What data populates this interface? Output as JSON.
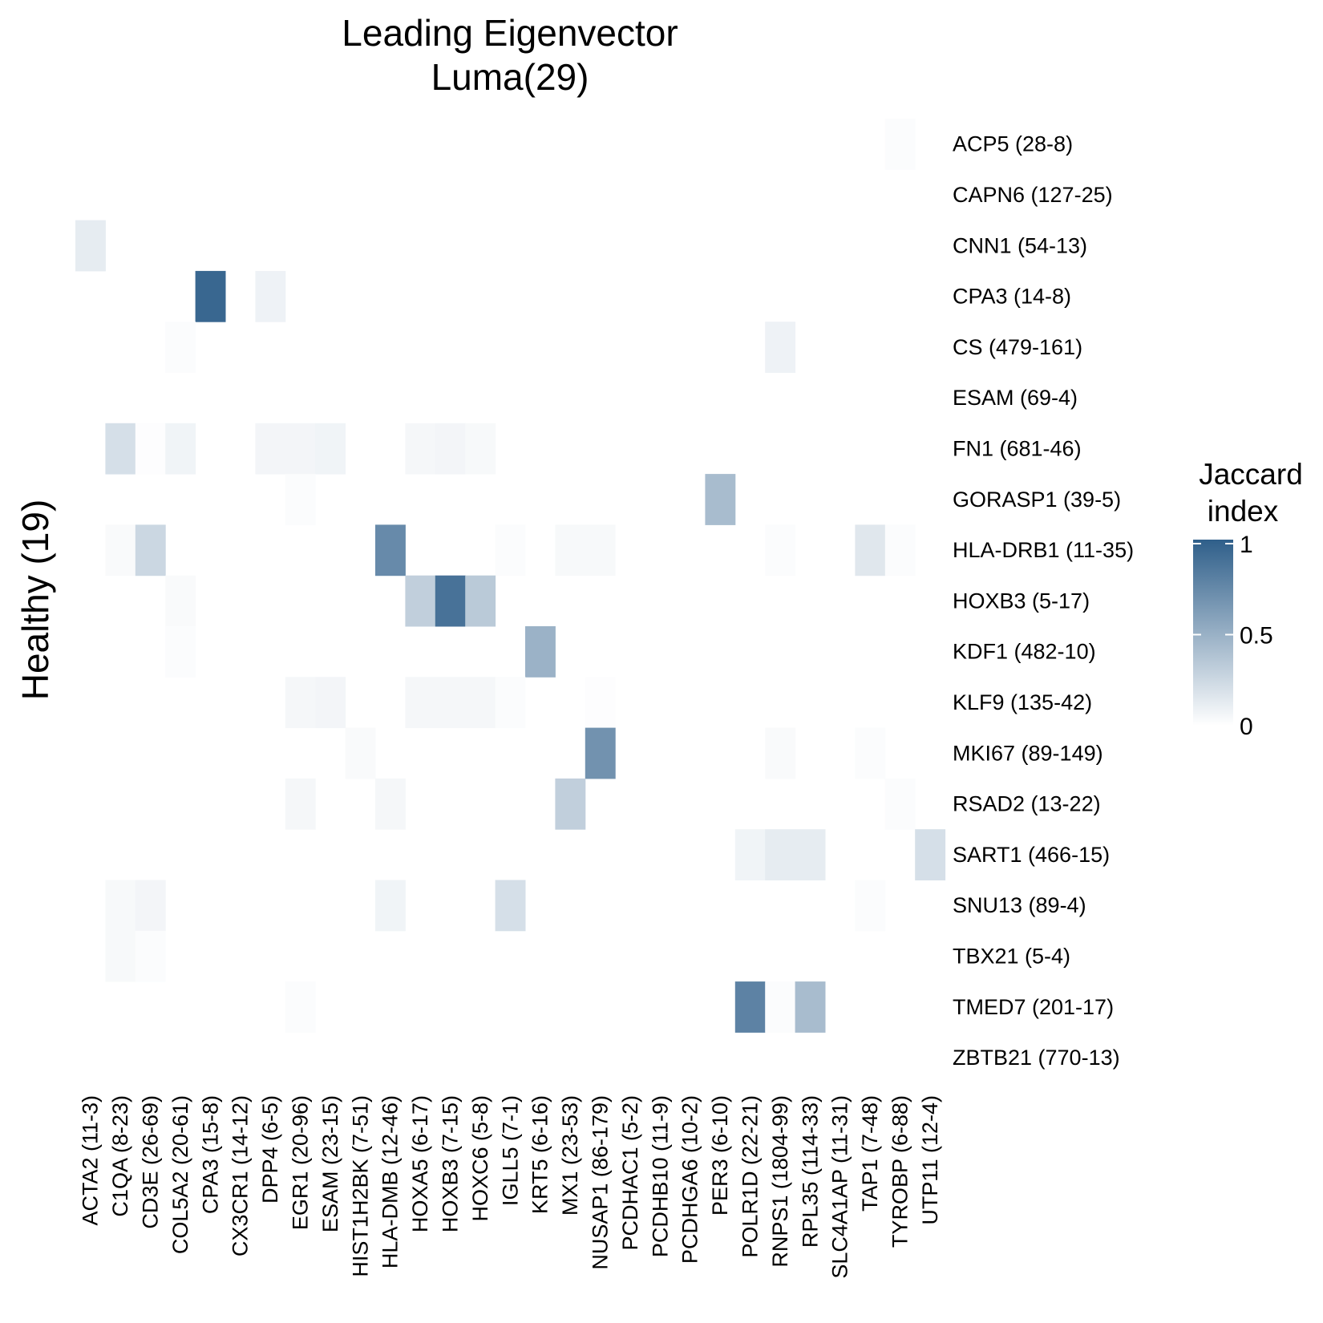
{
  "chart_data": {
    "type": "heatmap",
    "title": [
      "Leading Eigenvector",
      "Luma(29)"
    ],
    "ylabel": "Healthy (19)",
    "x_labels": [
      "ACTA2 (11-3)",
      "C1QA (8-23)",
      "CD3E (26-69)",
      "COL5A2 (20-61)",
      "CPA3 (15-8)",
      "CX3CR1 (14-12)",
      "DPP4 (6-5)",
      "EGR1 (20-96)",
      "ESAM (23-15)",
      "HIST1H2BK (7-51)",
      "HLA-DMB (12-46)",
      "HOXA5 (6-17)",
      "HOXB3 (7-15)",
      "HOXC6 (5-8)",
      "IGLL5 (7-1)",
      "KRT5 (6-16)",
      "MX1 (23-53)",
      "NUSAP1 (86-179)",
      "PCDHAC1 (5-2)",
      "PCDHB10 (11-9)",
      "PCDHGA6 (10-2)",
      "PER3 (6-10)",
      "POLR1D (22-21)",
      "RNPS1 (1804-99)",
      "RPL35 (114-33)",
      "SLC4A1AP (11-31)",
      "TAP1 (7-48)",
      "TYROBP (6-88)",
      "UTP11 (12-4)"
    ],
    "y_labels": [
      "ACP5 (28-8)",
      "CAPN6 (127-25)",
      "CNN1 (54-13)",
      "CPA3 (14-8)",
      "CS (479-161)",
      "ESAM (69-4)",
      "FN1 (681-46)",
      "GORASP1 (39-5)",
      "HLA-DRB1 (11-35)",
      "HOXB3 (5-17)",
      "KDF1 (482-10)",
      "KLF9 (135-42)",
      "MKI67 (89-149)",
      "RSAD2 (13-22)",
      "SART1 (466-15)",
      "SNU13 (89-4)",
      "TBX21 (5-4)",
      "TMED7 (201-17)",
      "ZBTB21 (770-13)"
    ],
    "cells": [
      [
        "ACP5 (28-8)",
        "TYROBP (6-88)",
        0.02
      ],
      [
        "CNN1 (54-13)",
        "ACTA2 (11-3)",
        0.12
      ],
      [
        "CPA3 (14-8)",
        "CPA3 (15-8)",
        0.95
      ],
      [
        "CPA3 (14-8)",
        "DPP4 (6-5)",
        0.08
      ],
      [
        "CS (479-161)",
        "COL5A2 (20-61)",
        0.02
      ],
      [
        "CS (479-161)",
        "RNPS1 (1804-99)",
        0.08
      ],
      [
        "FN1 (681-46)",
        "C1QA (8-23)",
        0.2
      ],
      [
        "FN1 (681-46)",
        "CD3E (26-69)",
        0.01
      ],
      [
        "FN1 (681-46)",
        "COL5A2 (20-61)",
        0.07
      ],
      [
        "FN1 (681-46)",
        "DPP4 (6-5)",
        0.06
      ],
      [
        "FN1 (681-46)",
        "EGR1 (20-96)",
        0.06
      ],
      [
        "FN1 (681-46)",
        "ESAM (23-15)",
        0.07
      ],
      [
        "FN1 (681-46)",
        "HOXA5 (6-17)",
        0.05
      ],
      [
        "FN1 (681-46)",
        "HOXB3 (7-15)",
        0.06
      ],
      [
        "FN1 (681-46)",
        "HOXC6 (5-8)",
        0.04
      ],
      [
        "GORASP1 (39-5)",
        "EGR1 (20-96)",
        0.02
      ],
      [
        "GORASP1 (39-5)",
        "PER3 (6-10)",
        0.42
      ],
      [
        "HLA-DRB1 (11-35)",
        "C1QA (8-23)",
        0.03
      ],
      [
        "HLA-DRB1 (11-35)",
        "CD3E (26-69)",
        0.25
      ],
      [
        "HLA-DRB1 (11-35)",
        "HLA-DMB (12-46)",
        0.73
      ],
      [
        "HLA-DRB1 (11-35)",
        "IGLL5 (7-1)",
        0.02
      ],
      [
        "HLA-DRB1 (11-35)",
        "MX1 (23-53)",
        0.04
      ],
      [
        "HLA-DRB1 (11-35)",
        "NUSAP1 (86-179)",
        0.04
      ],
      [
        "HLA-DRB1 (11-35)",
        "RNPS1 (1804-99)",
        0.02
      ],
      [
        "HLA-DRB1 (11-35)",
        "TAP1 (7-48)",
        0.15
      ],
      [
        "HLA-DRB1 (11-35)",
        "TYROBP (6-88)",
        0.02
      ],
      [
        "HOXB3 (5-17)",
        "COL5A2 (20-61)",
        0.03
      ],
      [
        "HOXB3 (5-17)",
        "HOXA5 (6-17)",
        0.3
      ],
      [
        "HOXB3 (5-17)",
        "HOXB3 (7-15)",
        0.88
      ],
      [
        "HOXB3 (5-17)",
        "HOXC6 (5-8)",
        0.33
      ],
      [
        "KDF1 (482-10)",
        "COL5A2 (20-61)",
        0.02
      ],
      [
        "KDF1 (482-10)",
        "KRT5 (6-16)",
        0.48
      ],
      [
        "KLF9 (135-42)",
        "EGR1 (20-96)",
        0.05
      ],
      [
        "KLF9 (135-42)",
        "ESAM (23-15)",
        0.06
      ],
      [
        "KLF9 (135-42)",
        "HOXA5 (6-17)",
        0.05
      ],
      [
        "KLF9 (135-42)",
        "HOXB3 (7-15)",
        0.05
      ],
      [
        "KLF9 (135-42)",
        "HOXC6 (5-8)",
        0.05
      ],
      [
        "KLF9 (135-42)",
        "IGLL5 (7-1)",
        0.02
      ],
      [
        "KLF9 (135-42)",
        "NUSAP1 (86-179)",
        0.01
      ],
      [
        "MKI67 (89-149)",
        "HIST1H2BK (7-51)",
        0.03
      ],
      [
        "MKI67 (89-149)",
        "NUSAP1 (86-179)",
        0.68
      ],
      [
        "MKI67 (89-149)",
        "RNPS1 (1804-99)",
        0.03
      ],
      [
        "MKI67 (89-149)",
        "TAP1 (7-48)",
        0.02
      ],
      [
        "RSAD2 (13-22)",
        "EGR1 (20-96)",
        0.05
      ],
      [
        "RSAD2 (13-22)",
        "HLA-DMB (12-46)",
        0.05
      ],
      [
        "RSAD2 (13-22)",
        "MX1 (23-53)",
        0.3
      ],
      [
        "RSAD2 (13-22)",
        "TYROBP (6-88)",
        0.02
      ],
      [
        "SART1 (466-15)",
        "POLR1D (22-21)",
        0.07
      ],
      [
        "SART1 (466-15)",
        "RNPS1 (1804-99)",
        0.12
      ],
      [
        "SART1 (466-15)",
        "RPL35 (114-33)",
        0.12
      ],
      [
        "SART1 (466-15)",
        "UTP11 (12-4)",
        0.2
      ],
      [
        "SNU13 (89-4)",
        "C1QA (8-23)",
        0.04
      ],
      [
        "SNU13 (89-4)",
        "CD3E (26-69)",
        0.06
      ],
      [
        "SNU13 (89-4)",
        "HLA-DMB (12-46)",
        0.07
      ],
      [
        "SNU13 (89-4)",
        "IGLL5 (7-1)",
        0.2
      ],
      [
        "SNU13 (89-4)",
        "TAP1 (7-48)",
        0.02
      ],
      [
        "TBX21 (5-4)",
        "C1QA (8-23)",
        0.04
      ],
      [
        "TBX21 (5-4)",
        "CD3E (26-69)",
        0.02
      ],
      [
        "TMED7 (201-17)",
        "EGR1 (20-96)",
        0.02
      ],
      [
        "TMED7 (201-17)",
        "POLR1D (22-21)",
        0.78
      ],
      [
        "TMED7 (201-17)",
        "RNPS1 (1804-99)",
        0.02
      ],
      [
        "TMED7 (201-17)",
        "RPL35 (114-33)",
        0.42
      ]
    ],
    "zlim": [
      0,
      1
    ],
    "legend": {
      "title": [
        "Jaccard",
        "index"
      ],
      "ticks": [
        {
          "value": 1,
          "label": "1"
        },
        {
          "value": 0.5,
          "label": "0.5"
        },
        {
          "value": 0,
          "label": "0"
        }
      ],
      "position": "right"
    },
    "colors": {
      "low": "#ffffff",
      "high": "#2f5f8a",
      "grid": "none"
    }
  }
}
